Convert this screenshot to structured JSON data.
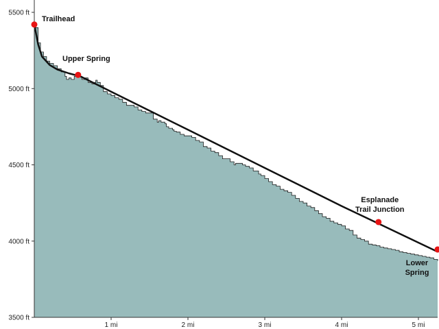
{
  "chart_data": {
    "type": "area",
    "title": "",
    "xlabel": "",
    "ylabel": "",
    "xlim": [
      0,
      5.25
    ],
    "ylim": [
      3500,
      5500
    ],
    "x_ticks": [
      {
        "value": 1,
        "label": "1 mi"
      },
      {
        "value": 2,
        "label": "2 mi"
      },
      {
        "value": 3,
        "label": "3 mi"
      },
      {
        "value": 4,
        "label": "4 mi"
      },
      {
        "value": 5,
        "label": "5 mi"
      }
    ],
    "y_ticks": [
      {
        "value": 3500,
        "label": "3500 ft"
      },
      {
        "value": 4000,
        "label": "4000 ft"
      },
      {
        "value": 4500,
        "label": "4500 ft"
      },
      {
        "value": 5000,
        "label": "5000 ft"
      },
      {
        "value": 5500,
        "label": "5500 ft"
      }
    ],
    "grid": false,
    "series": [
      {
        "kind": "terrain-profile",
        "x": [
          0,
          0.02,
          0.05,
          0.08,
          0.12,
          0.16,
          0.2,
          0.25,
          0.3,
          0.35,
          0.4,
          0.42,
          0.45,
          0.48,
          0.52,
          0.55,
          0.58,
          0.62,
          0.66,
          0.7,
          0.75,
          0.78,
          0.8,
          0.82,
          0.86,
          0.9,
          0.92,
          0.95,
          1.0,
          1.05,
          1.1,
          1.15,
          1.2,
          1.25,
          1.3,
          1.35,
          1.4,
          1.45,
          1.5,
          1.55,
          1.58,
          1.6,
          1.62,
          1.65,
          1.7,
          1.72,
          1.75,
          1.8,
          1.82,
          1.85,
          1.9,
          1.95,
          2.0,
          2.05,
          2.1,
          2.15,
          2.2,
          2.25,
          2.3,
          2.35,
          2.4,
          2.45,
          2.5,
          2.55,
          2.58,
          2.6,
          2.62,
          2.7,
          2.71,
          2.75,
          2.8,
          2.85,
          2.9,
          2.92,
          2.95,
          3.0,
          3.05,
          3.1,
          3.15,
          3.2,
          3.25,
          3.3,
          3.35,
          3.4,
          3.45,
          3.5,
          3.55,
          3.6,
          3.65,
          3.7,
          3.75,
          3.8,
          3.85,
          3.9,
          3.95,
          4.0,
          4.05,
          4.1,
          4.15,
          4.2,
          4.25,
          4.3,
          4.35,
          4.4,
          4.45,
          4.5,
          4.55,
          4.6,
          4.65,
          4.7,
          4.75,
          4.8,
          4.85,
          4.9,
          4.95,
          5.0,
          5.05,
          5.1,
          5.15,
          5.2,
          5.25
        ],
        "y": [
          5420,
          5400,
          5300,
          5240,
          5210,
          5180,
          5165,
          5150,
          5130,
          5110,
          5080,
          5060,
          5070,
          5060,
          5080,
          5095,
          5080,
          5060,
          5070,
          5040,
          5030,
          5040,
          5055,
          5040,
          5020,
          4980,
          4980,
          4965,
          4955,
          4940,
          4930,
          4910,
          4890,
          4890,
          4880,
          4860,
          4850,
          4840,
          4840,
          4800,
          4800,
          4780,
          4790,
          4780,
          4770,
          4750,
          4740,
          4730,
          4720,
          4715,
          4700,
          4690,
          4690,
          4680,
          4660,
          4650,
          4620,
          4610,
          4590,
          4580,
          4560,
          4540,
          4540,
          4520,
          4520,
          4500,
          4510,
          4510,
          4500,
          4490,
          4480,
          4460,
          4460,
          4440,
          4430,
          4410,
          4390,
          4370,
          4360,
          4340,
          4330,
          4320,
          4300,
          4280,
          4260,
          4250,
          4230,
          4220,
          4200,
          4180,
          4160,
          4150,
          4130,
          4120,
          4110,
          4100,
          4080,
          4070,
          4040,
          4020,
          4010,
          4000,
          3980,
          3975,
          3970,
          3960,
          3955,
          3950,
          3945,
          3940,
          3930,
          3925,
          3920,
          3915,
          3910,
          3905,
          3900,
          3895,
          3890,
          3880,
          3870
        ]
      },
      {
        "kind": "smoothed-grade-line",
        "x": [
          0,
          0.05,
          0.1,
          0.2,
          0.3,
          0.45,
          0.6,
          1.0,
          1.5,
          2.0,
          2.5,
          3.0,
          3.5,
          4.0,
          4.5,
          5.0,
          5.25
        ],
        "y": [
          5420,
          5290,
          5210,
          5155,
          5125,
          5100,
          5080,
          4980,
          4855,
          4730,
          4605,
          4480,
          4355,
          4230,
          4110,
          3990,
          3930
        ]
      }
    ],
    "points": [
      {
        "label": [
          "Trailhead"
        ],
        "x": 0.0,
        "y": 5420,
        "label_anchor": "right"
      },
      {
        "label": [
          "Upper Spring"
        ],
        "x": 0.57,
        "y": 5090,
        "label_anchor": "above-right"
      },
      {
        "label": [
          "Esplanade",
          "Trail Junction"
        ],
        "x": 4.48,
        "y": 4125,
        "label_anchor": "above"
      },
      {
        "label": [
          "Lower",
          "Spring"
        ],
        "x": 5.25,
        "y": 3945,
        "label_anchor": "below-left"
      }
    ],
    "colors": {
      "fill": "#98bbbb",
      "terrain_stroke": "#1a1a1a",
      "grade_line": "#111111",
      "point": "#e81414",
      "axis": "#333333"
    }
  }
}
